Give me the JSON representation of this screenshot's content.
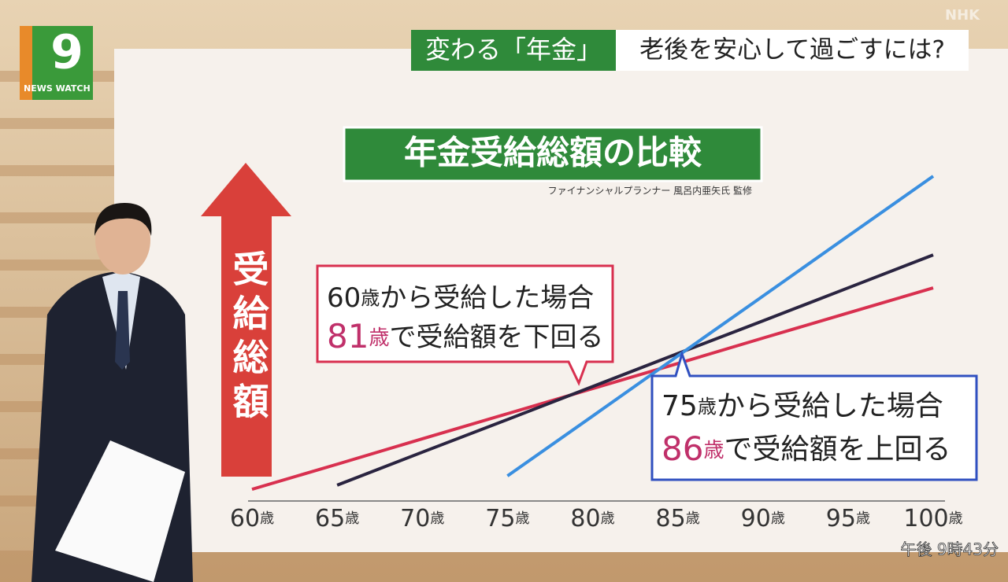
{
  "header": {
    "logo_text": "NEWS WATCH",
    "logo_number": "9",
    "topic": "変わる「年金」",
    "headline": "老後を安心して過ごすには?",
    "channel": "NHK",
    "time": "午後 9時43分"
  },
  "chart_data": {
    "type": "line",
    "title": "年金受給総額の比較",
    "subtitle": "ファイナンシャルプランナー 風呂内亜矢氏 監修",
    "y_label": "受給総額",
    "x": [
      60,
      65,
      70,
      75,
      80,
      85,
      90,
      95,
      100
    ],
    "xlim": [
      60,
      100
    ],
    "xticks": [
      {
        "value": 60,
        "label": "60歳"
      },
      {
        "value": 65,
        "label": "65歳"
      },
      {
        "value": 70,
        "label": "70歳"
      },
      {
        "value": 75,
        "label": "75歳"
      },
      {
        "value": 80,
        "label": "80歳"
      },
      {
        "value": 85,
        "label": "85歳"
      },
      {
        "value": 90,
        "label": "90歳"
      },
      {
        "value": 95,
        "label": "95歳"
      },
      {
        "value": 100,
        "label": "100歳"
      }
    ],
    "ylim": [
      0,
      100
    ],
    "series": [
      {
        "color": "#d8304f",
        "values": [
          3.4,
          10.7,
          18.1,
          25.4,
          32.7,
          40.0,
          47.4,
          54.7,
          62.0
        ]
      },
      {
        "color": "#2a2440",
        "values": [
          null,
          4.6,
          14.2,
          23.7,
          33.3,
          42.9,
          52.4,
          62.0,
          71.6
        ]
      },
      {
        "color": "#3a8fe0",
        "values": [
          null,
          null,
          null,
          7.3,
          24.7,
          42.2,
          59.6,
          77.1,
          94.5
        ]
      }
    ],
    "annotations": [
      {
        "lines": [
          "60歳から受給した場合",
          "81歳で受給額を下回る"
        ],
        "color": "#d8304f"
      },
      {
        "lines": [
          "75歳から受給した場合",
          "86歳で受給額を上回る"
        ],
        "color": "#3050c0"
      }
    ]
  }
}
